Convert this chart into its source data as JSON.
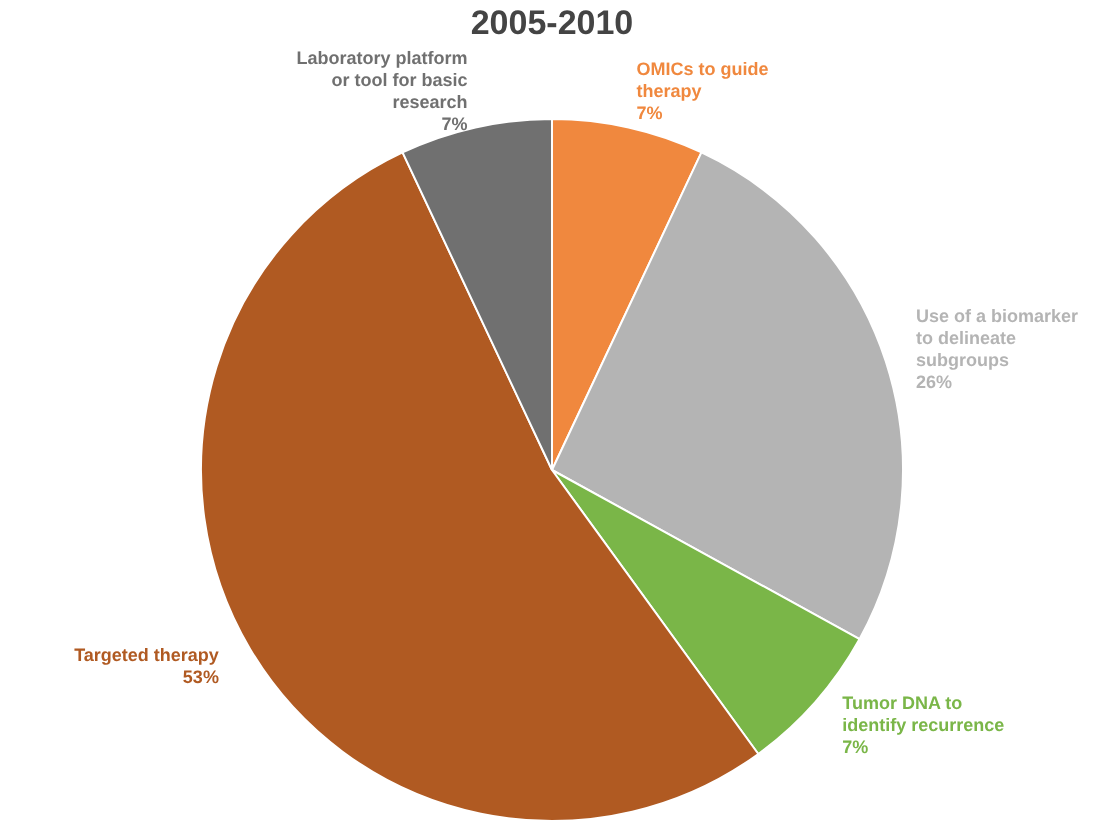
{
  "chart_data": {
    "type": "pie",
    "title": "2005-2010",
    "categories": [
      "OMICs to guide therapy",
      "Use of a biomarker to delineate subgroups",
      "Tumor DNA to identify recurrence",
      "Targeted therapy",
      "Laboratory platform or tool for basic research"
    ],
    "values": [
      7,
      26,
      7,
      53,
      7
    ],
    "colors": [
      "#f0883e",
      "#b4b4b4",
      "#7ab648",
      "#b05a22",
      "#707070"
    ],
    "value_labels": [
      "7%",
      "26%",
      "7%",
      "53%",
      "7%"
    ],
    "legend": false
  }
}
